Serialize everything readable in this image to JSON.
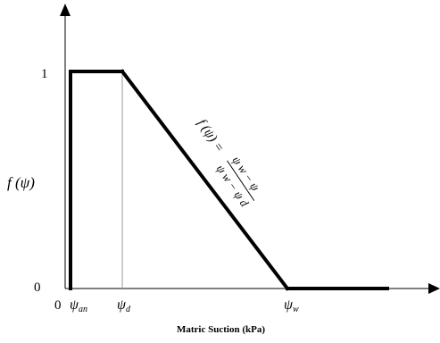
{
  "chart_data": {
    "type": "line",
    "xlabel": "Matric Suction (kPa)",
    "ylabel": "f (ψ)",
    "yticks": [
      {
        "value": 0,
        "label": "0"
      },
      {
        "value": 1,
        "label": "1"
      }
    ],
    "xticks": [
      {
        "id": "origin",
        "label": "0"
      },
      {
        "id": "psi_an",
        "symbol": "ψ",
        "sub": "an"
      },
      {
        "id": "psi_d",
        "symbol": "ψ",
        "sub": "d"
      },
      {
        "id": "psi_w",
        "symbol": "ψ",
        "sub": "w"
      }
    ],
    "series": [
      {
        "points": [
          {
            "x": "psi_an",
            "y": 0
          },
          {
            "x": "psi_an",
            "y": 1
          },
          {
            "x": "psi_d",
            "y": 1
          },
          {
            "x": "psi_w",
            "y": 0
          },
          {
            "x": "end",
            "y": 0
          }
        ]
      }
    ],
    "annotation": {
      "lhs": "f (ψ) =",
      "numerator": "ψ w − ψ",
      "denominator": "ψ w − ψ d"
    },
    "gridline_at": "psi_d",
    "grid": false,
    "legend": "none"
  }
}
